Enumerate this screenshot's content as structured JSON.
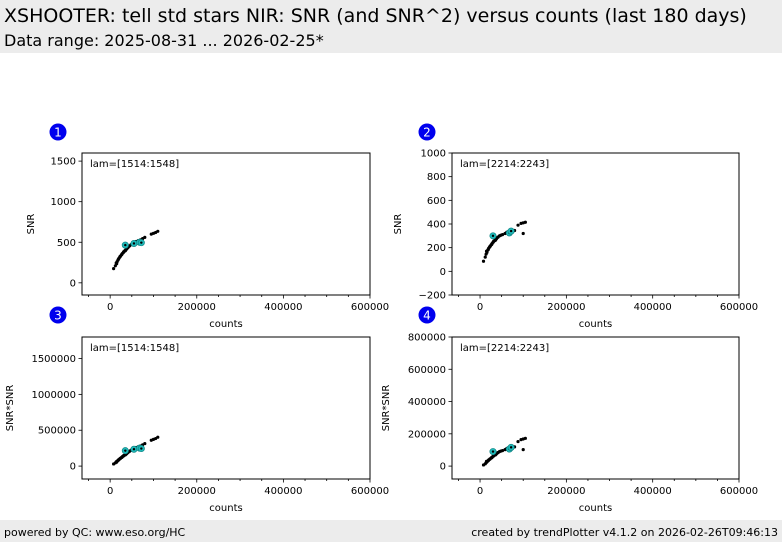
{
  "header": {
    "title": "XSHOOTER: tell std stars NIR: SNR (and SNR^2) versus counts (last 180 days)",
    "subtitle": "Data range: 2025-08-31 ... 2026-02-25*"
  },
  "footer": {
    "left": "powered by QC: www.eso.org/HC",
    "right": "created by trendPlotter v4.1.2 on 2026-02-26T09:46:13"
  },
  "colors": {
    "points": "#000000",
    "highlight": "#1fb8b8",
    "badge": "#0000ee",
    "header_bg": "#ececec"
  },
  "chart_data": [
    {
      "type": "scatter",
      "badge": "1",
      "annotation": "lam=[1514:1548]",
      "xlabel": "counts",
      "ylabel": "SNR",
      "xlim": [
        -65000,
        600000
      ],
      "ylim": [
        -150,
        1600
      ],
      "xticks": [
        0,
        200000,
        400000,
        600000
      ],
      "xticklabels": [
        "0",
        "200000",
        "400000",
        "600000"
      ],
      "yticks": [
        0,
        500,
        1000,
        1500
      ],
      "yticklabels": [
        "0",
        "500",
        "1000",
        "1500"
      ],
      "series": [
        {
          "role": "points",
          "points": [
            [
              8000,
              175
            ],
            [
              12000,
              210
            ],
            [
              14000,
              245
            ],
            [
              16000,
              260
            ],
            [
              18000,
              280
            ],
            [
              20000,
              300
            ],
            [
              22000,
              315
            ],
            [
              24000,
              330
            ],
            [
              26000,
              345
            ],
            [
              28000,
              360
            ],
            [
              30000,
              370
            ],
            [
              32000,
              385
            ],
            [
              34000,
              395
            ],
            [
              36000,
              405
            ],
            [
              38000,
              415
            ],
            [
              40000,
              430
            ],
            [
              42000,
              440
            ],
            [
              45000,
              455
            ],
            [
              48000,
              470
            ],
            [
              52000,
              485
            ],
            [
              56000,
              500
            ],
            [
              60000,
              510
            ],
            [
              65000,
              520
            ],
            [
              70000,
              530
            ],
            [
              75000,
              545
            ],
            [
              80000,
              560
            ],
            [
              95000,
              600
            ],
            [
              100000,
              610
            ],
            [
              105000,
              620
            ],
            [
              110000,
              635
            ],
            [
              15000,
              235
            ],
            [
              19000,
              290
            ],
            [
              23000,
              325
            ],
            [
              27000,
              350
            ],
            [
              31000,
              380
            ],
            [
              35000,
              395
            ],
            [
              39000,
              425
            ]
          ]
        },
        {
          "role": "highlight",
          "points": [
            [
              35000,
              465
            ],
            [
              55000,
              485
            ],
            [
              68000,
              500
            ],
            [
              72000,
              495
            ]
          ]
        }
      ]
    },
    {
      "type": "scatter",
      "badge": "2",
      "annotation": "lam=[2214:2243]",
      "xlabel": "counts",
      "ylabel": "SNR",
      "xlim": [
        -65000,
        600000
      ],
      "ylim": [
        -200,
        1000
      ],
      "xticks": [
        0,
        200000,
        400000,
        600000
      ],
      "xticklabels": [
        "0",
        "200000",
        "400000",
        "600000"
      ],
      "yticks": [
        -200,
        0,
        200,
        400,
        600,
        800,
        1000
      ],
      "yticklabels": [
        "−200",
        "0",
        "200",
        "400",
        "600",
        "800",
        "1000"
      ],
      "series": [
        {
          "role": "points",
          "points": [
            [
              8000,
              85
            ],
            [
              12000,
              120
            ],
            [
              14000,
              145
            ],
            [
              16000,
              160
            ],
            [
              18000,
              180
            ],
            [
              20000,
              195
            ],
            [
              22000,
              205
            ],
            [
              24000,
              215
            ],
            [
              26000,
              225
            ],
            [
              28000,
              235
            ],
            [
              30000,
              245
            ],
            [
              32000,
              255
            ],
            [
              34000,
              260
            ],
            [
              36000,
              265
            ],
            [
              38000,
              275
            ],
            [
              40000,
              285
            ],
            [
              42000,
              290
            ],
            [
              45000,
              300
            ],
            [
              48000,
              305
            ],
            [
              52000,
              310
            ],
            [
              58000,
              320
            ],
            [
              62000,
              330
            ],
            [
              70000,
              340
            ],
            [
              80000,
              345
            ],
            [
              88000,
              390
            ],
            [
              95000,
              405
            ],
            [
              100000,
              410
            ],
            [
              105000,
              415
            ],
            [
              100000,
              320
            ],
            [
              15000,
              170
            ],
            [
              19000,
              185
            ],
            [
              23000,
              210
            ],
            [
              27000,
              228
            ],
            [
              31000,
              250
            ],
            [
              35000,
              262
            ]
          ]
        },
        {
          "role": "highlight",
          "points": [
            [
              30000,
              300
            ],
            [
              68000,
              325
            ],
            [
              72000,
              340
            ]
          ]
        }
      ]
    },
    {
      "type": "scatter",
      "badge": "3",
      "annotation": "lam=[1514:1548]",
      "xlabel": "counts",
      "ylabel": "SNR*SNR",
      "xlim": [
        -65000,
        600000
      ],
      "ylim": [
        -180000,
        1800000
      ],
      "xticks": [
        0,
        200000,
        400000,
        600000
      ],
      "xticklabels": [
        "0",
        "200000",
        "400000",
        "600000"
      ],
      "yticks": [
        0,
        500000,
        1000000,
        1500000
      ],
      "yticklabels": [
        "0",
        "500000",
        "1000000",
        "1500000"
      ],
      "series": [
        {
          "role": "points",
          "points": [
            [
              8000,
              30000
            ],
            [
              12000,
              44000
            ],
            [
              14000,
              60000
            ],
            [
              16000,
              68000
            ],
            [
              18000,
              78000
            ],
            [
              20000,
              90000
            ],
            [
              22000,
              99000
            ],
            [
              24000,
              109000
            ],
            [
              26000,
              119000
            ],
            [
              28000,
              130000
            ],
            [
              30000,
              137000
            ],
            [
              32000,
              148000
            ],
            [
              34000,
              156000
            ],
            [
              36000,
              164000
            ],
            [
              38000,
              172000
            ],
            [
              40000,
              185000
            ],
            [
              42000,
              194000
            ],
            [
              45000,
              207000
            ],
            [
              48000,
              221000
            ],
            [
              52000,
              235000
            ],
            [
              56000,
              250000
            ],
            [
              60000,
              260000
            ],
            [
              65000,
              270000
            ],
            [
              70000,
              281000
            ],
            [
              75000,
              297000
            ],
            [
              80000,
              314000
            ],
            [
              95000,
              360000
            ],
            [
              100000,
              372000
            ],
            [
              105000,
              384000
            ],
            [
              110000,
              403000
            ],
            [
              15000,
              55000
            ],
            [
              19000,
              84000
            ],
            [
              23000,
              105000
            ],
            [
              27000,
              122000
            ],
            [
              31000,
              144000
            ],
            [
              35000,
              156000
            ]
          ]
        },
        {
          "role": "highlight",
          "points": [
            [
              35000,
              215000
            ],
            [
              55000,
              235000
            ],
            [
              68000,
              250000
            ],
            [
              72000,
              245000
            ]
          ]
        }
      ]
    },
    {
      "type": "scatter",
      "badge": "4",
      "annotation": "lam=[2214:2243]",
      "xlabel": "counts",
      "ylabel": "SNR*SNR",
      "xlim": [
        -65000,
        600000
      ],
      "ylim": [
        -80000,
        800000
      ],
      "xticks": [
        0,
        200000,
        400000,
        600000
      ],
      "xticklabels": [
        "0",
        "200000",
        "400000",
        "600000"
      ],
      "yticks": [
        0,
        200000,
        400000,
        600000,
        800000
      ],
      "yticklabels": [
        "0",
        "200000",
        "400000",
        "600000",
        "800000"
      ],
      "series": [
        {
          "role": "points",
          "points": [
            [
              8000,
              7000
            ],
            [
              12000,
              14000
            ],
            [
              14000,
              21000
            ],
            [
              16000,
              26000
            ],
            [
              18000,
              32000
            ],
            [
              20000,
              38000
            ],
            [
              22000,
              42000
            ],
            [
              24000,
              46000
            ],
            [
              26000,
              51000
            ],
            [
              28000,
              55000
            ],
            [
              30000,
              60000
            ],
            [
              32000,
              65000
            ],
            [
              34000,
              68000
            ],
            [
              36000,
              70000
            ],
            [
              38000,
              76000
            ],
            [
              40000,
              81000
            ],
            [
              42000,
              84000
            ],
            [
              45000,
              90000
            ],
            [
              48000,
              93000
            ],
            [
              52000,
              96000
            ],
            [
              58000,
              102000
            ],
            [
              62000,
              109000
            ],
            [
              70000,
              116000
            ],
            [
              80000,
              119000
            ],
            [
              88000,
              152000
            ],
            [
              95000,
              164000
            ],
            [
              100000,
              168000
            ],
            [
              105000,
              172000
            ],
            [
              100000,
              102000
            ],
            [
              15000,
              29000
            ],
            [
              19000,
              34000
            ],
            [
              23000,
              44000
            ],
            [
              27000,
              52000
            ],
            [
              31000,
              62000
            ],
            [
              35000,
              69000
            ]
          ]
        },
        {
          "role": "highlight",
          "points": [
            [
              30000,
              90000
            ],
            [
              68000,
              106000
            ],
            [
              72000,
              116000
            ]
          ]
        }
      ]
    }
  ]
}
